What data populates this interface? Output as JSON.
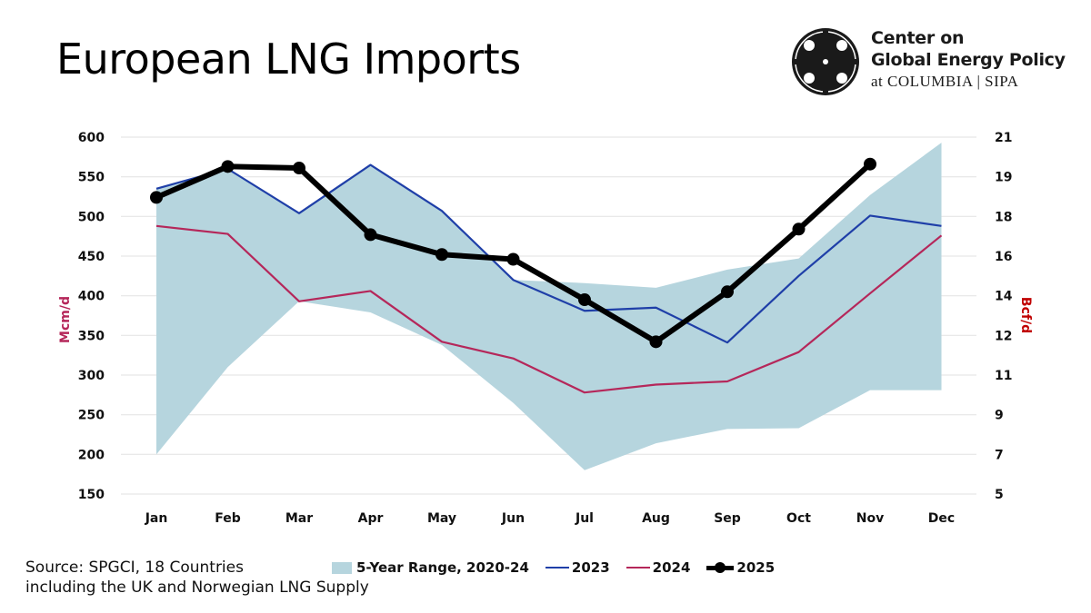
{
  "title": "European LNG Imports",
  "logo": {
    "line1": "Center on",
    "line2": "Global Energy Policy",
    "line3": "at COLUMBIA | SIPA"
  },
  "source": {
    "line1": "Source: SPGCI, 18 Countries",
    "line2": "including the UK and Norwegian LNG Supply"
  },
  "colors": {
    "band": "#b6d5de",
    "s2023": "#1f3fa8",
    "s2024": "#b5275a",
    "s2025": "#000000",
    "grid": "#e6e6e6"
  },
  "chart_data": {
    "type": "line",
    "title": "European LNG Imports",
    "xlabel": "",
    "ylabel": "Mcm/d",
    "ylabel_right": "Bcf/d",
    "categories": [
      "Jan",
      "Feb",
      "Mar",
      "Apr",
      "May",
      "Jun",
      "Jul",
      "Aug",
      "Sep",
      "Oct",
      "Nov",
      "Dec"
    ],
    "ylim": [
      150,
      600
    ],
    "yticks": [
      600,
      550,
      500,
      450,
      400,
      350,
      300,
      250,
      200,
      150
    ],
    "yticks_right": [
      "21",
      "19",
      "18",
      "16",
      "14",
      "12",
      "11",
      "9",
      "7",
      "5"
    ],
    "grid": true,
    "legend_position": "bottom",
    "band": {
      "name": "5-Year Range, 2020-24",
      "upper": [
        535,
        560,
        504,
        565,
        507,
        420,
        416,
        410,
        433,
        447,
        527,
        593
      ],
      "lower": [
        200,
        310,
        393,
        379,
        338,
        265,
        180,
        214,
        232,
        233,
        281,
        281
      ]
    },
    "series": [
      {
        "name": "2023",
        "values": [
          535,
          560,
          504,
          565,
          507,
          420,
          381,
          385,
          341,
          425,
          501,
          488
        ]
      },
      {
        "name": "2024",
        "values": [
          488,
          478,
          393,
          406,
          342,
          321,
          278,
          288,
          292,
          329,
          403,
          476
        ]
      },
      {
        "name": "2025",
        "values": [
          524,
          563,
          561,
          477,
          452,
          446,
          395,
          342,
          405,
          484,
          566,
          null
        ]
      }
    ]
  }
}
